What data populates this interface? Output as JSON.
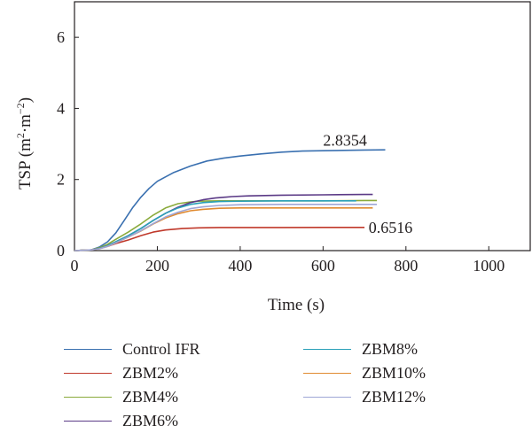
{
  "chart_data": {
    "type": "line",
    "title": "",
    "xlabel": "Time (s)",
    "ylabel_main": "TSP (m",
    "ylabel_sup1": "2",
    "ylabel_mid": "·m",
    "ylabel_sup2": "−2",
    "ylabel_end": ")",
    "xlim": [
      0,
      1100
    ],
    "ylim": [
      0,
      7
    ],
    "xticks": [
      0,
      200,
      400,
      600,
      800,
      1000
    ],
    "yticks": [
      0,
      2,
      4,
      6
    ],
    "grid": false,
    "legend_position": "bottom",
    "annotations": [
      {
        "text": "2.8354",
        "x": 600,
        "y": 3.1
      },
      {
        "text": "0.6516",
        "x": 710,
        "y": 0.65
      }
    ],
    "series": [
      {
        "name": "Control IFR",
        "color": "#3a70b0",
        "x": [
          0,
          40,
          60,
          80,
          100,
          120,
          140,
          160,
          180,
          200,
          240,
          280,
          320,
          360,
          400,
          450,
          500,
          550,
          600,
          650,
          700,
          750
        ],
        "y": [
          0,
          0.02,
          0.1,
          0.25,
          0.5,
          0.85,
          1.2,
          1.5,
          1.75,
          1.95,
          2.2,
          2.38,
          2.52,
          2.6,
          2.66,
          2.72,
          2.77,
          2.8,
          2.81,
          2.82,
          2.83,
          2.8354
        ]
      },
      {
        "name": "ZBM2%",
        "color": "#c0392b",
        "x": [
          0,
          40,
          60,
          80,
          100,
          130,
          160,
          190,
          220,
          260,
          300,
          350,
          400,
          500,
          600,
          700
        ],
        "y": [
          0,
          0.02,
          0.06,
          0.12,
          0.2,
          0.3,
          0.42,
          0.52,
          0.58,
          0.62,
          0.64,
          0.65,
          0.65,
          0.65,
          0.6516,
          0.6516
        ]
      },
      {
        "name": "ZBM4%",
        "color": "#8aaa3b",
        "x": [
          0,
          40,
          60,
          80,
          100,
          130,
          160,
          190,
          220,
          250,
          280,
          300,
          350,
          400,
          500,
          600,
          700,
          730
        ],
        "y": [
          0,
          0.02,
          0.08,
          0.18,
          0.32,
          0.52,
          0.75,
          1.0,
          1.2,
          1.32,
          1.37,
          1.39,
          1.4,
          1.4,
          1.4,
          1.4,
          1.41,
          1.41
        ]
      },
      {
        "name": "ZBM6%",
        "color": "#5b3a86",
        "x": [
          0,
          40,
          60,
          80,
          100,
          130,
          160,
          190,
          220,
          250,
          280,
          310,
          340,
          380,
          420,
          500,
          600,
          700,
          720
        ],
        "y": [
          0,
          0.02,
          0.06,
          0.14,
          0.25,
          0.42,
          0.62,
          0.85,
          1.05,
          1.22,
          1.35,
          1.43,
          1.48,
          1.52,
          1.54,
          1.56,
          1.57,
          1.58,
          1.58
        ]
      },
      {
        "name": "ZBM8%",
        "color": "#2aa0b8",
        "x": [
          0,
          40,
          60,
          80,
          100,
          130,
          160,
          190,
          220,
          250,
          280,
          310,
          350,
          400,
          500,
          600,
          680
        ],
        "y": [
          0,
          0.02,
          0.06,
          0.14,
          0.25,
          0.42,
          0.62,
          0.85,
          1.05,
          1.2,
          1.3,
          1.35,
          1.38,
          1.39,
          1.4,
          1.4,
          1.4
        ]
      },
      {
        "name": "ZBM10%",
        "color": "#e08a30",
        "x": [
          0,
          40,
          60,
          80,
          100,
          130,
          160,
          190,
          220,
          250,
          280,
          310,
          350,
          400,
          500,
          600,
          720
        ],
        "y": [
          0,
          0.02,
          0.05,
          0.12,
          0.22,
          0.38,
          0.55,
          0.75,
          0.92,
          1.04,
          1.12,
          1.16,
          1.19,
          1.2,
          1.2,
          1.2,
          1.2
        ]
      },
      {
        "name": "ZBM12%",
        "color": "#9fa6d6",
        "x": [
          0,
          40,
          60,
          80,
          100,
          130,
          160,
          190,
          220,
          250,
          280,
          310,
          350,
          400,
          500,
          600,
          700,
          730
        ],
        "y": [
          0,
          0.02,
          0.05,
          0.12,
          0.22,
          0.38,
          0.56,
          0.76,
          0.95,
          1.08,
          1.18,
          1.23,
          1.27,
          1.29,
          1.3,
          1.3,
          1.3,
          1.3
        ]
      }
    ]
  }
}
